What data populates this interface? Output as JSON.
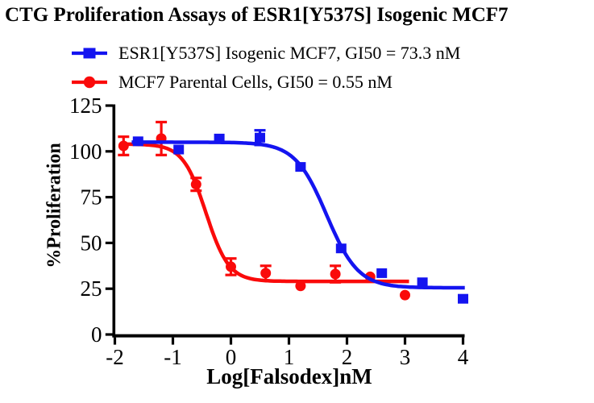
{
  "title": "CTG Proliferation Assays of ESR1[Y537S] Isogenic MCF7",
  "legend": [
    {
      "label": "ESR1[Y537S] Isogenic MCF7, GI50 = 73.3 nM",
      "marker": "square",
      "color": "#1414f0"
    },
    {
      "label": "MCF7 Parental Cells, GI50 = 0.55 nM",
      "marker": "circle",
      "color": "#fa0a0a"
    }
  ],
  "chart_data": {
    "type": "scatter",
    "title": "CTG Proliferation Assays of ESR1[Y537S] Isogenic MCF7",
    "xlabel": "Log[Falsodex]nM",
    "ylabel": "%Proliferation",
    "xlim": [
      -2,
      4
    ],
    "ylim": [
      0,
      125
    ],
    "xticks": [
      -2,
      -1,
      0,
      1,
      2,
      3,
      4
    ],
    "yticks": [
      0,
      25,
      50,
      75,
      100,
      125
    ],
    "grid": false,
    "legend_position": "top-left",
    "axis_color": "#000000",
    "series": [
      {
        "name": "ESR1[Y537S] Isogenic MCF7",
        "gi50": "73.3 nM",
        "marker": "square",
        "color": "#1414f0",
        "points": [
          {
            "x": -1.6,
            "y": 105.5
          },
          {
            "x": -0.9,
            "y": 101
          },
          {
            "x": -0.2,
            "y": 107
          },
          {
            "x": 0.5,
            "y": 107.5,
            "err": 4
          },
          {
            "x": 1.2,
            "y": 91.5
          },
          {
            "x": 1.9,
            "y": 47
          },
          {
            "x": 2.6,
            "y": 33.5
          },
          {
            "x": 3.3,
            "y": 28.5
          },
          {
            "x": 4.0,
            "y": 19.5
          }
        ],
        "fit": {
          "top": 105,
          "bottom": 25.5,
          "logec50": 1.65,
          "hill": 1.6,
          "xmin": -1.71,
          "xmax": 4.03
        }
      },
      {
        "name": "MCF7 Parental Cells",
        "gi50": "0.55 nM",
        "marker": "circle",
        "color": "#fa0a0a",
        "points": [
          {
            "x": -1.85,
            "y": 103,
            "err": 5
          },
          {
            "x": -1.2,
            "y": 107,
            "err": 9
          },
          {
            "x": -0.6,
            "y": 82,
            "err": 3.5
          },
          {
            "x": 0.0,
            "y": 37,
            "err": 4.5
          },
          {
            "x": 0.6,
            "y": 33.5,
            "err": 4
          },
          {
            "x": 1.2,
            "y": 26.5
          },
          {
            "x": 1.8,
            "y": 33,
            "err": 4.5
          },
          {
            "x": 2.4,
            "y": 31.5
          },
          {
            "x": 3.0,
            "y": 21.5
          }
        ],
        "fit": {
          "top": 104,
          "bottom": 29,
          "logec50": -0.43,
          "hill": 2.2,
          "xmin": -1.87,
          "xmax": 3.07
        }
      }
    ]
  }
}
